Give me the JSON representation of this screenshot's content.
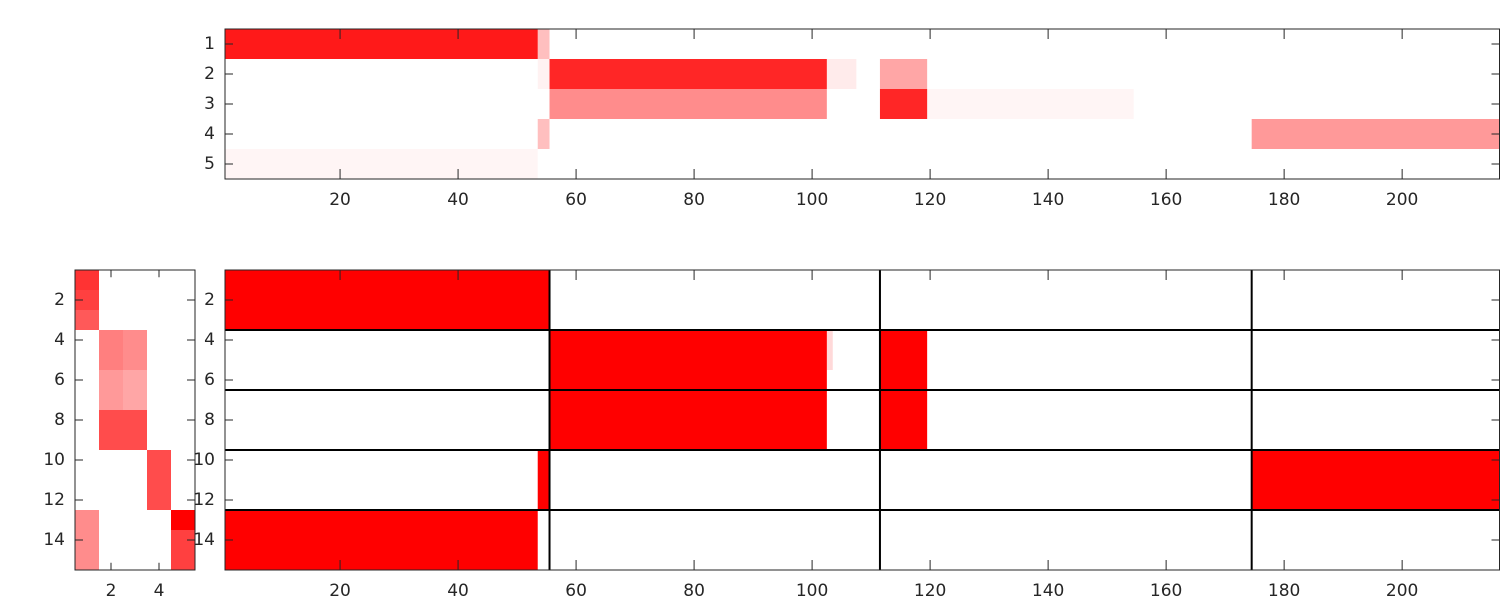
{
  "chart_data": [
    {
      "type": "heatmap",
      "color": "#ff0000",
      "xlim": [
        0.5,
        216.5
      ],
      "ylim": [
        0.5,
        5.5
      ],
      "xticks": [
        20,
        40,
        60,
        80,
        100,
        120,
        140,
        160,
        180,
        200
      ],
      "yticks": [
        1,
        2,
        3,
        4,
        5
      ],
      "cells": [
        {
          "x0": 0.5,
          "x1": 53.5,
          "y0": 0.5,
          "y1": 1.5,
          "value": 0.9
        },
        {
          "x0": 53.5,
          "x1": 55.5,
          "y0": 0.5,
          "y1": 1.5,
          "value": 0.25
        },
        {
          "x0": 53.5,
          "x1": 55.5,
          "y0": 1.5,
          "y1": 2.5,
          "value": 0.05
        },
        {
          "x0": 55.5,
          "x1": 102.5,
          "y0": 1.5,
          "y1": 2.5,
          "value": 0.85
        },
        {
          "x0": 102.5,
          "x1": 107.5,
          "y0": 1.5,
          "y1": 2.5,
          "value": 0.08
        },
        {
          "x0": 111.5,
          "x1": 119.5,
          "y0": 1.5,
          "y1": 2.5,
          "value": 0.35
        },
        {
          "x0": 55.5,
          "x1": 102.5,
          "y0": 2.5,
          "y1": 3.5,
          "value": 0.45
        },
        {
          "x0": 111.5,
          "x1": 119.5,
          "y0": 2.5,
          "y1": 3.5,
          "value": 0.85
        },
        {
          "x0": 119.5,
          "x1": 154.5,
          "y0": 2.5,
          "y1": 3.5,
          "value": 0.04
        },
        {
          "x0": 53.5,
          "x1": 55.5,
          "y0": 3.5,
          "y1": 4.5,
          "value": 0.25
        },
        {
          "x0": 174.5,
          "x1": 216.5,
          "y0": 3.5,
          "y1": 4.5,
          "value": 0.4
        },
        {
          "x0": 0.5,
          "x1": 53.5,
          "y0": 4.5,
          "y1": 5.5,
          "value": 0.04
        }
      ]
    },
    {
      "type": "heatmap",
      "color": "#ff0000",
      "xlim": [
        0.5,
        5.5
      ],
      "ylim": [
        0.5,
        15.5
      ],
      "xticks": [
        2,
        4
      ],
      "yticks": [
        2,
        4,
        6,
        8,
        10,
        12,
        14
      ],
      "cells": [
        {
          "x0": 0.5,
          "x1": 1.5,
          "y0": 0.5,
          "y1": 1.5,
          "value": 0.8
        },
        {
          "x0": 0.5,
          "x1": 1.5,
          "y0": 1.5,
          "y1": 2.5,
          "value": 0.75
        },
        {
          "x0": 0.5,
          "x1": 1.5,
          "y0": 2.5,
          "y1": 3.5,
          "value": 0.65
        },
        {
          "x0": 0.5,
          "x1": 1.5,
          "y0": 12.5,
          "y1": 15.5,
          "value": 0.45
        },
        {
          "x0": 1.5,
          "x1": 2.5,
          "y0": 3.5,
          "y1": 5.5,
          "value": 0.5
        },
        {
          "x0": 1.5,
          "x1": 2.5,
          "y0": 5.5,
          "y1": 7.5,
          "value": 0.4
        },
        {
          "x0": 1.5,
          "x1": 2.5,
          "y0": 7.5,
          "y1": 9.5,
          "value": 0.7
        },
        {
          "x0": 2.5,
          "x1": 3.5,
          "y0": 3.5,
          "y1": 5.5,
          "value": 0.45
        },
        {
          "x0": 2.5,
          "x1": 3.5,
          "y0": 5.5,
          "y1": 7.5,
          "value": 0.35
        },
        {
          "x0": 2.5,
          "x1": 3.5,
          "y0": 7.5,
          "y1": 9.5,
          "value": 0.7
        },
        {
          "x0": 3.5,
          "x1": 4.5,
          "y0": 9.5,
          "y1": 12.5,
          "value": 0.7
        },
        {
          "x0": 4.5,
          "x1": 5.5,
          "y0": 12.5,
          "y1": 13.5,
          "value": 1
        },
        {
          "x0": 4.5,
          "x1": 5.5,
          "y0": 13.5,
          "y1": 15.5,
          "value": 0.75
        }
      ]
    },
    {
      "type": "heatmap",
      "color": "#ff0000",
      "xlim": [
        0.5,
        216.5
      ],
      "ylim": [
        0.5,
        15.5
      ],
      "xticks": [
        20,
        40,
        60,
        80,
        100,
        120,
        140,
        160,
        180,
        200
      ],
      "yticks": [
        2,
        4,
        6,
        8,
        10,
        12,
        14
      ],
      "vlines": [
        55.5,
        111.5,
        174.5
      ],
      "hlines": [
        3.5,
        6.5,
        9.5,
        12.5
      ],
      "cells": [
        {
          "x0": 0.5,
          "x1": 55.5,
          "y0": 0.5,
          "y1": 3.5,
          "value": 1
        },
        {
          "x0": 55.5,
          "x1": 102.5,
          "y0": 3.5,
          "y1": 9.5,
          "value": 1
        },
        {
          "x0": 102.5,
          "x1": 103.5,
          "y0": 3.5,
          "y1": 5.5,
          "value": 0.15
        },
        {
          "x0": 111.5,
          "x1": 119.5,
          "y0": 3.5,
          "y1": 9.5,
          "value": 1
        },
        {
          "x0": 53.5,
          "x1": 55.5,
          "y0": 9.5,
          "y1": 12.5,
          "value": 1
        },
        {
          "x0": 174.5,
          "x1": 216.5,
          "y0": 9.5,
          "y1": 12.5,
          "value": 1
        },
        {
          "x0": 0.5,
          "x1": 53.5,
          "y0": 12.5,
          "y1": 15.5,
          "value": 1
        }
      ]
    }
  ]
}
